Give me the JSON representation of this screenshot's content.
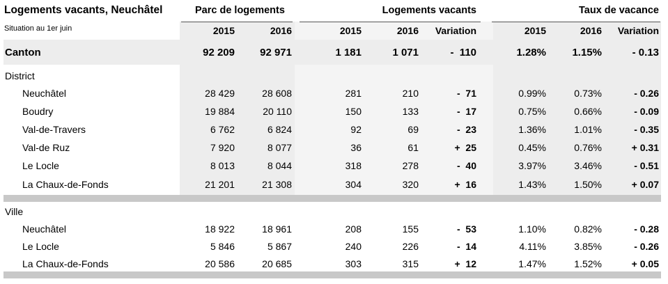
{
  "header": {
    "title": "Logements vacants, Neuchâtel",
    "subtitle": "Situation au 1er juin",
    "groups": [
      "Parc de logements",
      "Logements vacants",
      "Taux de vacance"
    ],
    "years": [
      "2015",
      "2016",
      "2015",
      "2016",
      "Variation",
      "2015",
      "2016",
      "Variation"
    ]
  },
  "rows": [
    {
      "kind": "canton",
      "label": "Canton",
      "parc2015": "92 209",
      "parc2016": "92 971",
      "vac2015": "1 181",
      "vac2016": "1 071",
      "vacVar": "-  110",
      "taux2015": "1.28%",
      "taux2016": "1.15%",
      "tauxVar": "- 0.13"
    },
    {
      "kind": "section",
      "label": "District"
    },
    {
      "kind": "data",
      "label": "Neuchâtel",
      "parc2015": "28 429",
      "parc2016": "28 608",
      "vac2015": "281",
      "vac2016": "210",
      "vacVar": "-  71",
      "taux2015": "0.99%",
      "taux2016": "0.73%",
      "tauxVar": "- 0.26"
    },
    {
      "kind": "data",
      "label": "Boudry",
      "parc2015": "19 884",
      "parc2016": "20 110",
      "vac2015": "150",
      "vac2016": "133",
      "vacVar": "-  17",
      "taux2015": "0.75%",
      "taux2016": "0.66%",
      "tauxVar": "- 0.09"
    },
    {
      "kind": "data",
      "label": "Val-de-Travers",
      "parc2015": "6 762",
      "parc2016": "6 824",
      "vac2015": "92",
      "vac2016": "69",
      "vacVar": "-  23",
      "taux2015": "1.36%",
      "taux2016": "1.01%",
      "tauxVar": "- 0.35"
    },
    {
      "kind": "data",
      "label": "Val-de Ruz",
      "parc2015": "7 920",
      "parc2016": "8 077",
      "vac2015": "36",
      "vac2016": "61",
      "vacVar": "+  25",
      "taux2015": "0.45%",
      "taux2016": "0.76%",
      "tauxVar": "+ 0.31"
    },
    {
      "kind": "data",
      "label": "Le Locle",
      "parc2015": "8 013",
      "parc2016": "8 044",
      "vac2015": "318",
      "vac2016": "278",
      "vacVar": "-  40",
      "taux2015": "3.97%",
      "taux2016": "3.46%",
      "tauxVar": "- 0.51"
    },
    {
      "kind": "data",
      "label": "La Chaux-de-Fonds",
      "parc2015": "21 201",
      "parc2016": "21 308",
      "vac2015": "304",
      "vac2016": "320",
      "vacVar": "+  16",
      "taux2015": "1.43%",
      "taux2016": "1.50%",
      "tauxVar": "+ 0.07"
    },
    {
      "kind": "section",
      "label": "Ville"
    },
    {
      "kind": "data",
      "label": "Neuchâtel",
      "parc2015": "18 922",
      "parc2016": "18 961",
      "vac2015": "208",
      "vac2016": "155",
      "vacVar": "-  53",
      "taux2015": "1.10%",
      "taux2016": "0.82%",
      "tauxVar": "- 0.28"
    },
    {
      "kind": "data",
      "label": "Le Locle",
      "parc2015": "5 846",
      "parc2016": "5 867",
      "vac2015": "240",
      "vac2016": "226",
      "vacVar": "-  14",
      "taux2015": "4.11%",
      "taux2016": "3.85%",
      "tauxVar": "- 0.26"
    },
    {
      "kind": "data",
      "label": "La Chaux-de-Fonds",
      "parc2015": "20 586",
      "parc2016": "20 685",
      "vac2015": "303",
      "vac2016": "315",
      "vacVar": "+  12",
      "taux2015": "1.47%",
      "taux2016": "1.52%",
      "tauxVar": "+ 0.05"
    }
  ]
}
